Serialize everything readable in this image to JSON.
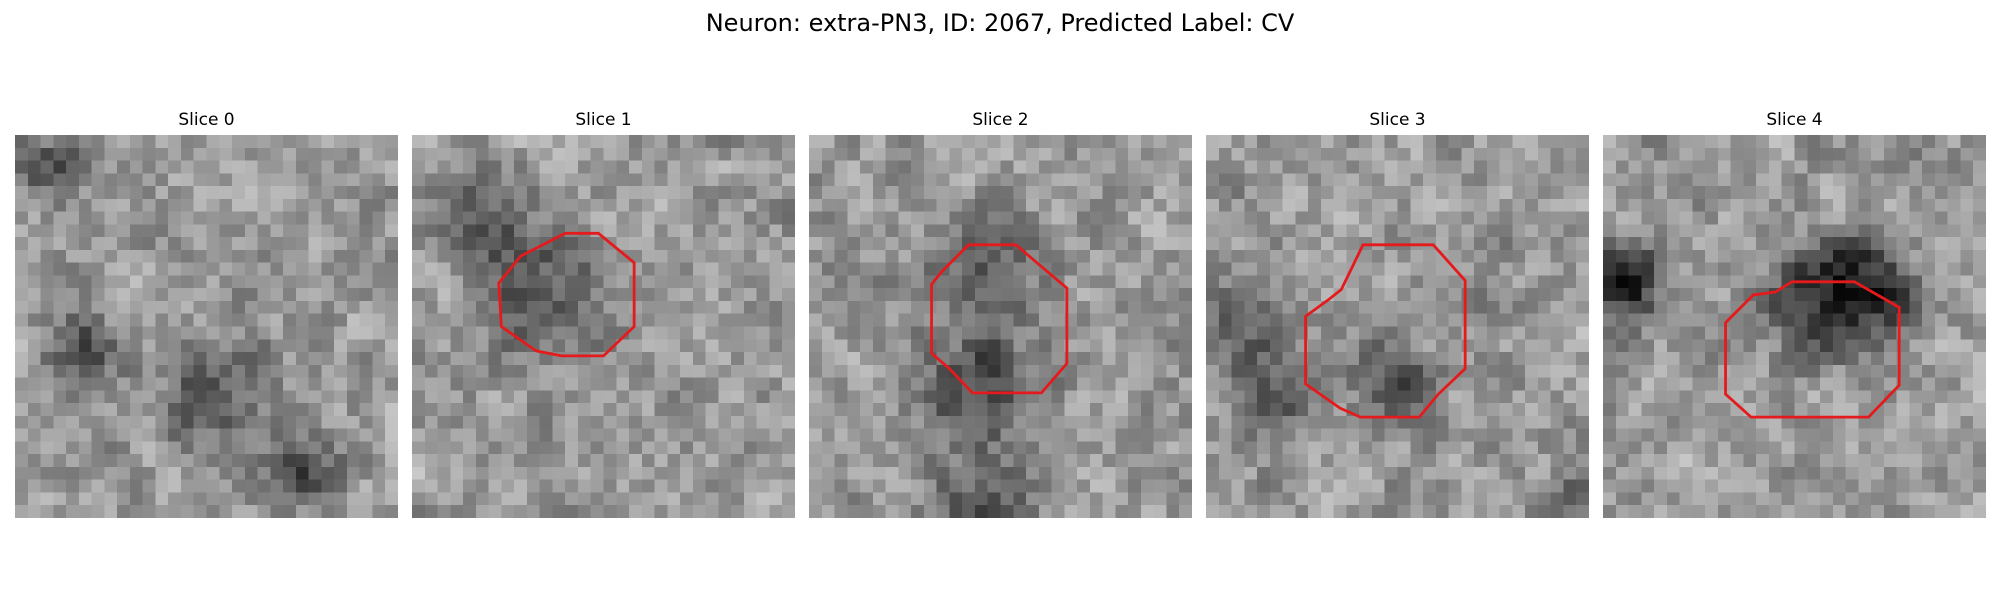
{
  "title": "Neuron: extra-PN3, ID: 2067, Predicted Label: CV",
  "contour_color": "#e41a1c",
  "grid_size": 30,
  "panels": [
    {
      "title": "Slice 0",
      "seed": 11,
      "dark_spots": [
        [
          2,
          2,
          2.5
        ],
        [
          15,
          20,
          4
        ],
        [
          22,
          26,
          3
        ],
        [
          5,
          16,
          3
        ]
      ],
      "contour": null
    },
    {
      "title": "Slice 1",
      "seed": 23,
      "dark_spots": [
        [
          10,
          12,
          5
        ],
        [
          5,
          6,
          4
        ]
      ],
      "contour": [
        [
          8.5,
          9.5
        ],
        [
          12,
          7.7
        ],
        [
          14.6,
          7.7
        ],
        [
          17.4,
          10
        ],
        [
          17.4,
          15
        ],
        [
          15,
          17.3
        ],
        [
          11.7,
          17.3
        ],
        [
          9.7,
          16.9
        ],
        [
          7,
          15
        ],
        [
          6.8,
          11.6
        ]
      ]
    },
    {
      "title": "Slice 2",
      "seed": 37,
      "dark_spots": [
        [
          13,
          19,
          5
        ],
        [
          13,
          10,
          4
        ],
        [
          13,
          29,
          4
        ]
      ],
      "contour": [
        [
          10.4,
          10.7
        ],
        [
          12.5,
          8.6
        ],
        [
          16.2,
          8.6
        ],
        [
          20.2,
          12
        ],
        [
          20.2,
          17.9
        ],
        [
          18.2,
          20.2
        ],
        [
          12.8,
          20.2
        ],
        [
          11,
          18.3
        ],
        [
          9.6,
          17.1
        ],
        [
          9.6,
          11.7
        ]
      ]
    },
    {
      "title": "Slice 3",
      "seed": 51,
      "dark_spots": [
        [
          2,
          15,
          3
        ],
        [
          5,
          20,
          3
        ],
        [
          14,
          18,
          3
        ],
        [
          29,
          28,
          2
        ]
      ],
      "contour": [
        [
          9.6,
          12.9
        ],
        [
          10.6,
          12.1
        ],
        [
          12.3,
          8.6
        ],
        [
          17.8,
          8.6
        ],
        [
          20.3,
          11.4
        ],
        [
          20.3,
          18.3
        ],
        [
          18.2,
          20.3
        ],
        [
          16.7,
          22.1
        ],
        [
          12.1,
          22.1
        ],
        [
          10.5,
          21.4
        ],
        [
          7.8,
          19.5
        ],
        [
          7.8,
          14.2
        ]
      ]
    },
    {
      "title": "Slice 4",
      "seed": 67,
      "dark_spots": [
        [
          19,
          11,
          4
        ],
        [
          16,
          13,
          4
        ],
        [
          21,
          12,
          3
        ],
        [
          1,
          10,
          3
        ],
        [
          1,
          12,
          3
        ]
      ],
      "contour": [
        [
          12,
          12.5
        ],
        [
          13.5,
          12.3
        ],
        [
          14.8,
          11.5
        ],
        [
          19.7,
          11.5
        ],
        [
          23.2,
          13.5
        ],
        [
          23.2,
          19.6
        ],
        [
          20.8,
          22.1
        ],
        [
          11.6,
          22.1
        ],
        [
          9.6,
          20.3
        ],
        [
          9.6,
          14.7
        ],
        [
          11.8,
          12.5
        ]
      ]
    }
  ]
}
